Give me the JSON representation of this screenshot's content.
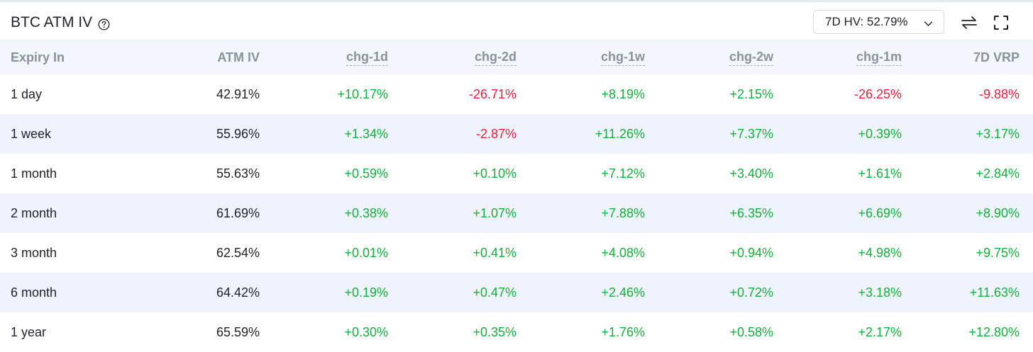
{
  "header": {
    "title": "BTC ATM IV",
    "hv_select_value": "7D HV: 52.79%"
  },
  "table": {
    "columns": [
      "Expiry In",
      "ATM IV",
      "chg-1d",
      "chg-2d",
      "chg-1w",
      "chg-2w",
      "chg-1m",
      "7D VRP"
    ],
    "rows": [
      {
        "expiry": "1 day",
        "atm_iv": "42.91%",
        "chg_1d": "+10.17%",
        "chg_2d": "-26.71%",
        "chg_1w": "+8.19%",
        "chg_2w": "+2.15%",
        "chg_1m": "-26.25%",
        "vrp_7d": "-9.88%"
      },
      {
        "expiry": "1 week",
        "atm_iv": "55.96%",
        "chg_1d": "+1.34%",
        "chg_2d": "-2.87%",
        "chg_1w": "+11.26%",
        "chg_2w": "+7.37%",
        "chg_1m": "+0.39%",
        "vrp_7d": "+3.17%"
      },
      {
        "expiry": "1 month",
        "atm_iv": "55.63%",
        "chg_1d": "+0.59%",
        "chg_2d": "+0.10%",
        "chg_1w": "+7.12%",
        "chg_2w": "+3.40%",
        "chg_1m": "+1.61%",
        "vrp_7d": "+2.84%"
      },
      {
        "expiry": "2 month",
        "atm_iv": "61.69%",
        "chg_1d": "+0.38%",
        "chg_2d": "+1.07%",
        "chg_1w": "+7.88%",
        "chg_2w": "+6.35%",
        "chg_1m": "+6.69%",
        "vrp_7d": "+8.90%"
      },
      {
        "expiry": "3 month",
        "atm_iv": "62.54%",
        "chg_1d": "+0.01%",
        "chg_2d": "+0.41%",
        "chg_1w": "+4.08%",
        "chg_2w": "+0.94%",
        "chg_1m": "+4.98%",
        "vrp_7d": "+9.75%"
      },
      {
        "expiry": "6 month",
        "atm_iv": "64.42%",
        "chg_1d": "+0.19%",
        "chg_2d": "+0.47%",
        "chg_1w": "+2.46%",
        "chg_2w": "+0.72%",
        "chg_1m": "+3.18%",
        "vrp_7d": "+11.63%"
      },
      {
        "expiry": "1 year",
        "atm_iv": "65.59%",
        "chg_1d": "+0.30%",
        "chg_2d": "+0.35%",
        "chg_1w": "+1.76%",
        "chg_2w": "+0.58%",
        "chg_1m": "+2.17%",
        "vrp_7d": "+12.80%"
      }
    ]
  },
  "colors": {
    "positive": "#12b03a",
    "negative": "#ef1f3c",
    "header_row_bg": "#f3f6fc",
    "alt_row_bg": "#eff3fb"
  },
  "icons": {
    "help": "question-circle-icon",
    "dropdown": "chevron-down-icon",
    "swap": "swap-arrows-icon",
    "fullscreen": "fullscreen-icon"
  }
}
